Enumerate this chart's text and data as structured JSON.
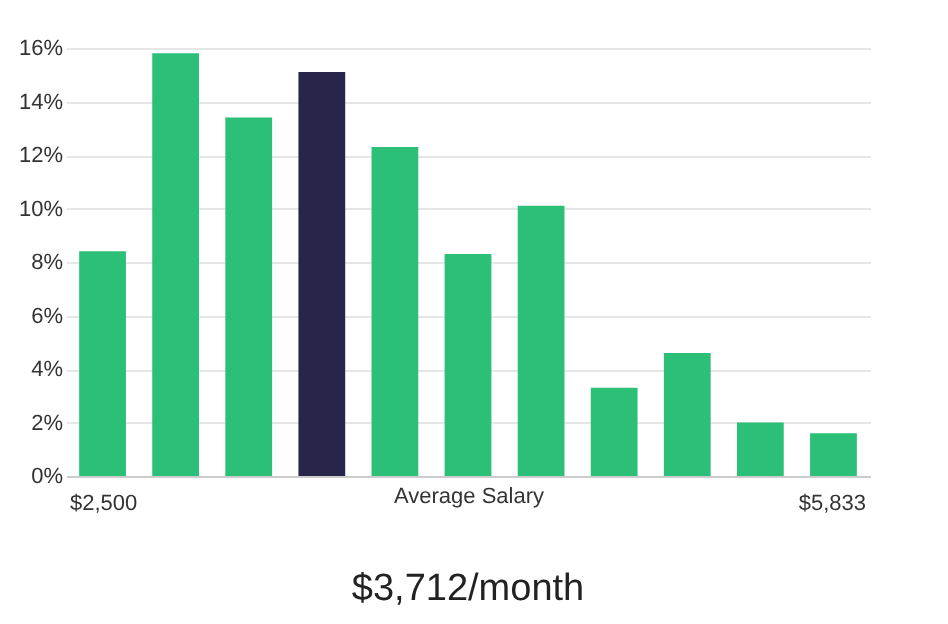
{
  "chart_data": {
    "type": "bar",
    "title": "$3,712/month",
    "xlabel": "Average Salary",
    "annotations": [
      "$2,500",
      "$5,833"
    ],
    "categories": [
      null,
      null,
      null,
      null,
      null,
      null,
      null,
      null,
      null,
      null,
      null
    ],
    "values": [
      8.4,
      15.8,
      13.4,
      15.1,
      12.3,
      8.3,
      10.1,
      3.3,
      4.6,
      2.0,
      1.6
    ],
    "colors": [
      "#2bbf77",
      "#2bbf77",
      "#2bbf77",
      "#27264a",
      "#2bbf77",
      "#2bbf77",
      "#2bbf77",
      "#2bbf77",
      "#2bbf77",
      "#2bbf77",
      "#2bbf77"
    ],
    "ylim": [
      0,
      16
    ],
    "yticks": [
      {
        "value": 0,
        "label": "0%"
      },
      {
        "value": 2,
        "label": "2%"
      },
      {
        "value": 4,
        "label": "4%"
      },
      {
        "value": 6,
        "label": "6%"
      },
      {
        "value": 8,
        "label": "8%"
      },
      {
        "value": 10,
        "label": "10%"
      },
      {
        "value": 12,
        "label": "12%"
      },
      {
        "value": 14,
        "label": "14%"
      },
      {
        "value": 16,
        "label": "16%"
      }
    ],
    "grid": "y"
  }
}
